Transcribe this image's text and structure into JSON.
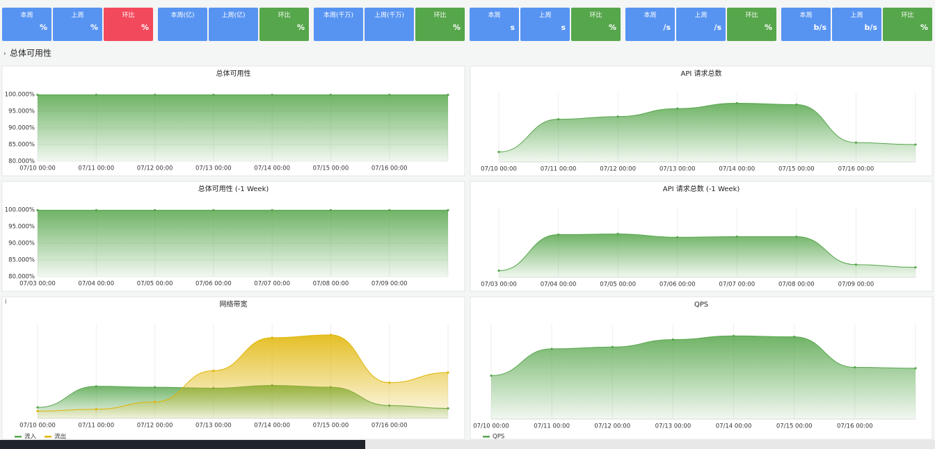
{
  "stat_tiles": [
    {
      "label": "本周",
      "value": "%",
      "color": "#5794f2"
    },
    {
      "label": "上周",
      "value": "%",
      "color": "#5794f2"
    },
    {
      "label": "环比",
      "value": "%",
      "color": "#f2495c"
    },
    {
      "label": "本周(亿)",
      "color": "#5794f2"
    },
    {
      "label": "上周(亿)",
      "color": "#5794f2"
    },
    {
      "label": "环比",
      "value": "%",
      "color": "#56a64b"
    },
    {
      "label": "本周(千万)",
      "color": "#5794f2"
    },
    {
      "label": "上周(千万)",
      "color": "#5794f2"
    },
    {
      "label": "环比",
      "value": "%",
      "color": "#56a64b"
    },
    {
      "label": "本周",
      "value": "s",
      "color": "#5794f2"
    },
    {
      "label": "上周",
      "value": "s",
      "color": "#5794f2"
    },
    {
      "label": "环比",
      "value": "%",
      "color": "#56a64b"
    },
    {
      "label": "本周",
      "value": "/s",
      "color": "#5794f2"
    },
    {
      "label": "上周",
      "value": "/s",
      "color": "#5794f2"
    },
    {
      "label": "环比",
      "value": "%",
      "color": "#56a64b"
    },
    {
      "label": "本周",
      "value": "b/s",
      "color": "#5794f2"
    },
    {
      "label": "上周",
      "value": "b/s",
      "color": "#5794f2"
    },
    {
      "label": "环比",
      "value": "%",
      "color": "#56a64b"
    }
  ],
  "row_title": "总体可用性",
  "chart_data": [
    {
      "type": "line",
      "title": "总体可用性",
      "categories": [
        "07/10 00:00",
        "07/11 00:00",
        "07/12 00:00",
        "07/13 00:00",
        "07/14 00:00",
        "07/15 00:00",
        "07/16 00:00",
        null
      ],
      "series": [
        {
          "color": "#56a64b",
          "values": [
            99.9,
            99.9,
            99.9,
            99.9,
            99.9,
            99.9,
            99.9,
            99.9
          ]
        }
      ],
      "ylim": [
        80,
        100
      ],
      "yticks": [
        {
          "value": 80,
          "label": "80.000%"
        },
        {
          "value": 85,
          "label": "85.000%"
        },
        {
          "value": 90,
          "label": "90.000%"
        },
        {
          "value": 95,
          "label": "95.000%"
        },
        {
          "value": 100,
          "label": "100.000%"
        }
      ],
      "grid": true
    },
    {
      "type": "line",
      "title": "API 请求总数",
      "categories": [
        "07/10 00:00",
        "07/11 00:00",
        "07/12 00:00",
        "07/13 00:00",
        "07/14 00:00",
        "07/15 00:00",
        "07/16 00:00",
        null
      ],
      "series": [
        {
          "color": "#56a64b",
          "values": [
            15,
            64,
            68,
            80,
            88,
            86,
            29,
            26
          ]
        }
      ],
      "ylim": [
        0,
        100
      ],
      "grid": true
    },
    {
      "type": "line",
      "title": "总体可用性 (-1 Week)",
      "categories": [
        "07/03 00:00",
        "07/04 00:00",
        "07/05 00:00",
        "07/06 00:00",
        "07/07 00:00",
        "07/08 00:00",
        "07/09 00:00",
        null
      ],
      "series": [
        {
          "color": "#56a64b",
          "values": [
            99.9,
            99.9,
            99.9,
            99.9,
            99.9,
            99.9,
            99.9,
            99.9
          ]
        }
      ],
      "ylim": [
        80,
        100
      ],
      "yticks": [
        {
          "value": 80,
          "label": "80.000%"
        },
        {
          "value": 85,
          "label": "85.000%"
        },
        {
          "value": 90,
          "label": "90.000%"
        },
        {
          "value": 95,
          "label": "95.000%"
        },
        {
          "value": 100,
          "label": "100.000%"
        }
      ],
      "grid": true
    },
    {
      "type": "line",
      "title": "API 请求总数 (-1 Week)",
      "categories": [
        "07/03 00:00",
        "07/04 00:00",
        "07/05 00:00",
        "07/06 00:00",
        "07/07 00:00",
        "07/08 00:00",
        "07/09 00:00",
        null
      ],
      "series": [
        {
          "color": "#56a64b",
          "values": [
            10,
            64,
            65,
            60,
            61,
            61,
            19,
            15
          ]
        }
      ],
      "ylim": [
        0,
        100
      ],
      "grid": true
    },
    {
      "type": "line",
      "title": "网络带宽",
      "categories": [
        "07/10 00:00",
        "07/11 00:00",
        "07/12 00:00",
        "07/13 00:00",
        "07/14 00:00",
        "07/15 00:00",
        "07/16 00:00",
        null
      ],
      "series": [
        {
          "name": "流入",
          "color": "#56a64b",
          "values": [
            12,
            35,
            34,
            33,
            36,
            34,
            14,
            11
          ]
        },
        {
          "name": "流出",
          "color": "#e0b400",
          "values": [
            8,
            10,
            18,
            52,
            88,
            91,
            39,
            50
          ]
        }
      ],
      "ylim": [
        0,
        100
      ],
      "grid": true,
      "legend": "bottom-left"
    },
    {
      "type": "line",
      "title": "QPS",
      "categories": [
        "07/10 00:00",
        "07/11 00:00",
        "07/12 00:00",
        "07/13 00:00",
        "07/14 00:00",
        "07/15 00:00",
        "07/16 00:00",
        null
      ],
      "series": [
        {
          "name": "QPS",
          "color": "#56a64b",
          "values": [
            47,
            76,
            78,
            86,
            90,
            89,
            56,
            55
          ]
        }
      ],
      "ylim": [
        0,
        100
      ],
      "grid": true,
      "legend": "bottom-left"
    }
  ]
}
